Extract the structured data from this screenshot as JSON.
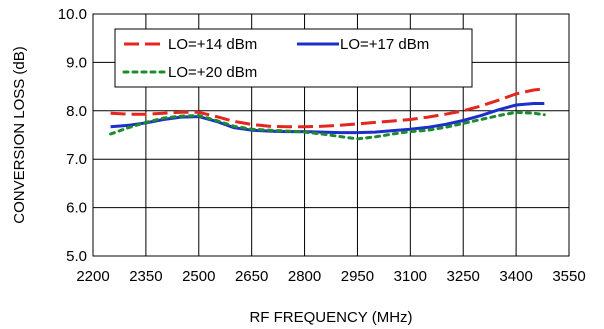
{
  "chart_data": {
    "type": "line",
    "title": "",
    "xlabel": "RF FREQUENCY (MHz)",
    "ylabel": "CONVERSION LOSS (dB)",
    "xlim": [
      2200,
      3550
    ],
    "ylim": [
      5.0,
      10.0
    ],
    "xticks": [
      2200,
      2350,
      2500,
      2650,
      2800,
      2950,
      3100,
      3250,
      3400,
      3550
    ],
    "yticks": [
      5.0,
      6.0,
      7.0,
      8.0,
      9.0,
      10.0
    ],
    "x_tick_labels": [
      "2200",
      "2350",
      "2500",
      "2650",
      "2800",
      "2950",
      "3100",
      "3250",
      "3400",
      "3550"
    ],
    "y_tick_labels": [
      "5.0",
      "6.0",
      "7.0",
      "8.0",
      "9.0",
      "10.0"
    ],
    "grid": true,
    "legend_position": "top-left inside plot",
    "series": [
      {
        "name": "LO=+14 dBm",
        "color": "#e3261f",
        "dash": "long-dash",
        "x": [
          2250,
          2300,
          2350,
          2400,
          2450,
          2500,
          2550,
          2600,
          2650,
          2700,
          2750,
          2800,
          2850,
          2900,
          2950,
          3000,
          3050,
          3100,
          3150,
          3200,
          3250,
          3300,
          3350,
          3400,
          3450,
          3480
        ],
        "y": [
          7.95,
          7.93,
          7.93,
          7.95,
          7.97,
          7.97,
          7.88,
          7.78,
          7.72,
          7.68,
          7.67,
          7.67,
          7.68,
          7.7,
          7.73,
          7.76,
          7.79,
          7.82,
          7.87,
          7.93,
          8.0,
          8.1,
          8.22,
          8.35,
          8.43,
          8.45
        ]
      },
      {
        "name": "LO=+17 dBm",
        "color": "#1c2fcc",
        "dash": "solid",
        "x": [
          2250,
          2300,
          2350,
          2400,
          2450,
          2500,
          2550,
          2600,
          2650,
          2700,
          2750,
          2800,
          2850,
          2900,
          2950,
          3000,
          3050,
          3100,
          3150,
          3200,
          3250,
          3300,
          3350,
          3400,
          3450,
          3480
        ],
        "y": [
          7.67,
          7.7,
          7.75,
          7.82,
          7.87,
          7.88,
          7.78,
          7.65,
          7.6,
          7.58,
          7.57,
          7.57,
          7.56,
          7.55,
          7.55,
          7.56,
          7.59,
          7.62,
          7.66,
          7.72,
          7.8,
          7.9,
          8.02,
          8.12,
          8.15,
          8.15
        ]
      },
      {
        "name": "LO=+20 dBm",
        "color": "#1d8a2e",
        "dash": "dotted",
        "x": [
          2250,
          2300,
          2350,
          2400,
          2450,
          2500,
          2550,
          2600,
          2650,
          2700,
          2750,
          2800,
          2850,
          2900,
          2950,
          3000,
          3050,
          3100,
          3150,
          3200,
          3250,
          3300,
          3350,
          3400,
          3450,
          3480
        ],
        "y": [
          7.52,
          7.65,
          7.76,
          7.85,
          7.89,
          7.9,
          7.8,
          7.68,
          7.62,
          7.6,
          7.58,
          7.56,
          7.52,
          7.47,
          7.42,
          7.46,
          7.52,
          7.57,
          7.6,
          7.66,
          7.74,
          7.82,
          7.9,
          7.97,
          7.95,
          7.92
        ]
      }
    ]
  }
}
